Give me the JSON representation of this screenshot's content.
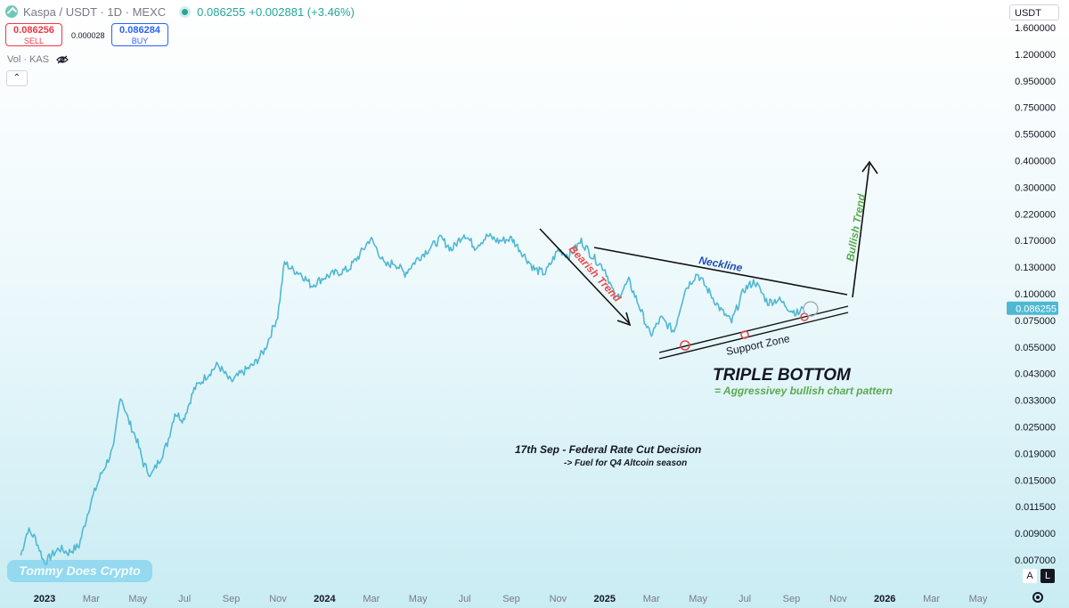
{
  "header": {
    "symbol": "Kaspa / USDT · 1D · MEXC",
    "last_price": "0.086255",
    "change": "+0.002881 (+3.46%)"
  },
  "trade": {
    "sell_price": "0.086256",
    "sell_label": "SELL",
    "spread": "0.000028",
    "buy_price": "0.086284",
    "buy_label": "BUY"
  },
  "volume_label": "Vol · KAS",
  "currency": "USDT",
  "watermark": "Tommy Does Crypto",
  "axis_buttons": {
    "auto": "A",
    "log": "L"
  },
  "colors": {
    "line": "#4fb8d3",
    "accent_red": "#e84b4b",
    "accent_blue": "#1f4fb0",
    "accent_green": "#5aaa4e"
  },
  "chart_data": {
    "type": "line",
    "scale": "log",
    "ylim": [
      0.006,
      1.9
    ],
    "y_ticks": [
      "1.600000",
      "1.200000",
      "0.950000",
      "0.750000",
      "0.550000",
      "0.400000",
      "0.300000",
      "0.220000",
      "0.170000",
      "0.130000",
      "0.100000",
      "0.075000",
      "0.055000",
      "0.043000",
      "0.033000",
      "0.025000",
      "0.019000",
      "0.015000",
      "0.011500",
      "0.009000",
      "0.007000"
    ],
    "x_ticks": [
      "2023",
      "Mar",
      "May",
      "Jul",
      "Sep",
      "Nov",
      "2024",
      "Mar",
      "May",
      "Jul",
      "Sep",
      "Nov",
      "2025",
      "Mar",
      "May",
      "Jul",
      "Sep",
      "Nov",
      "2026",
      "Mar",
      "May"
    ],
    "x_ticks_bold": [
      "2023",
      "2024",
      "2025",
      "2026"
    ],
    "current_price_label": "0.086255",
    "series": [
      {
        "x": [
          "2022-12-01",
          "2022-12-10",
          "2022-12-20",
          "2023-01-01",
          "2023-01-10",
          "2023-01-20",
          "2023-02-01",
          "2023-02-15",
          "2023-03-01",
          "2023-03-15",
          "2023-04-01",
          "2023-04-10",
          "2023-04-20",
          "2023-05-01",
          "2023-05-10",
          "2023-05-20",
          "2023-06-01",
          "2023-06-10",
          "2023-06-20",
          "2023-07-01",
          "2023-07-15",
          "2023-08-01",
          "2023-08-15",
          "2023-09-01",
          "2023-09-15",
          "2023-10-01",
          "2023-10-15",
          "2023-11-01",
          "2023-11-10",
          "2023-11-20",
          "2023-12-01",
          "2023-12-15",
          "2024-01-01",
          "2024-01-15",
          "2024-02-01",
          "2024-02-15",
          "2024-03-01",
          "2024-03-10",
          "2024-03-20",
          "2024-04-01",
          "2024-04-15",
          "2024-05-01",
          "2024-05-15",
          "2024-06-01",
          "2024-06-15",
          "2024-07-01",
          "2024-07-15",
          "2024-08-01",
          "2024-08-15",
          "2024-09-01",
          "2024-09-15",
          "2024-10-01",
          "2024-10-15",
          "2024-11-01",
          "2024-11-15",
          "2024-12-01",
          "2024-12-15",
          "2025-01-01",
          "2025-01-15",
          "2025-02-01",
          "2025-02-15",
          "2025-03-01",
          "2025-03-15",
          "2025-04-01",
          "2025-04-15",
          "2025-05-01",
          "2025-05-15",
          "2025-06-01",
          "2025-06-15",
          "2025-07-01",
          "2025-07-15",
          "2025-08-01",
          "2025-08-15",
          "2025-09-01",
          "2025-09-10",
          "2025-09-16"
        ],
        "y": [
          0.0065,
          0.0085,
          0.0078,
          0.006,
          0.0065,
          0.007,
          0.0067,
          0.0072,
          0.011,
          0.015,
          0.02,
          0.035,
          0.027,
          0.022,
          0.017,
          0.015,
          0.018,
          0.021,
          0.029,
          0.027,
          0.037,
          0.043,
          0.048,
          0.04,
          0.044,
          0.048,
          0.056,
          0.08,
          0.14,
          0.13,
          0.125,
          0.11,
          0.12,
          0.125,
          0.13,
          0.15,
          0.18,
          0.16,
          0.135,
          0.14,
          0.125,
          0.145,
          0.16,
          0.18,
          0.16,
          0.19,
          0.165,
          0.185,
          0.175,
          0.18,
          0.155,
          0.13,
          0.125,
          0.16,
          0.15,
          0.175,
          0.15,
          0.13,
          0.095,
          0.115,
          0.088,
          0.065,
          0.078,
          0.068,
          0.105,
          0.125,
          0.105,
          0.085,
          0.075,
          0.105,
          0.115,
          0.092,
          0.095,
          0.085,
          0.082,
          0.0863
        ]
      }
    ],
    "annotations": {
      "bearish": "Bearish Trend",
      "neckline": "Neckline",
      "bullish": "Bullish Trend",
      "support": "Support Zone",
      "pattern_title": "TRIPLE BOTTOM",
      "pattern_sub": "= Aggressivey bullish chart pattern",
      "event_title": "17th Sep - Federal Rate Cut Decision",
      "event_sub": "-> Fuel for Q4 Altcoin season"
    }
  }
}
